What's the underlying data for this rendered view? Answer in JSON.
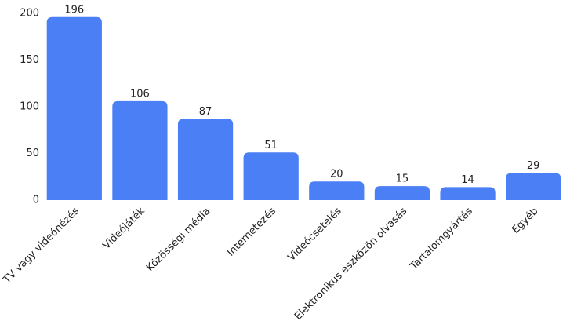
{
  "chart_data": {
    "type": "bar",
    "categories": [
      "TV vagy videónézés",
      "Videójáték",
      "Közösségi média",
      "Internetezés",
      "Videócsetelés",
      "Elektronikus eszközön olvasás",
      "Tartalomgyártás",
      "Egyéb"
    ],
    "values": [
      196,
      106,
      87,
      51,
      20,
      15,
      14,
      29
    ],
    "color": "#4a7ff5",
    "ylim": [
      0,
      200
    ],
    "yticks": [
      0,
      50,
      100,
      150,
      200
    ],
    "grid": false
  }
}
